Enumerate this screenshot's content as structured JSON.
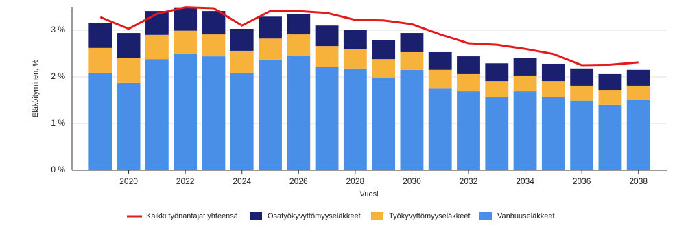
{
  "chart_data": {
    "type": "bar",
    "stacked": true,
    "x_label": "Vuosi",
    "y_label": "Eläköityminen, %",
    "x": [
      2019,
      2020,
      2021,
      2022,
      2023,
      2024,
      2025,
      2026,
      2027,
      2028,
      2029,
      2030,
      2031,
      2032,
      2033,
      2034,
      2035,
      2036,
      2037,
      2038
    ],
    "xlim": [
      2018,
      2039
    ],
    "xticks": [
      2020,
      2022,
      2024,
      2026,
      2028,
      2030,
      2032,
      2034,
      2036,
      2038
    ],
    "ylim": [
      0,
      3.5
    ],
    "yticks": [
      {
        "value": 0,
        "label": "0 %"
      },
      {
        "value": 1,
        "label": "1 %"
      },
      {
        "value": 2,
        "label": "2 %"
      },
      {
        "value": 3,
        "label": "3 %"
      }
    ],
    "grid": true,
    "legend": "bottom",
    "series": [
      {
        "name": "Kaikki työnantajat yhteensä",
        "type": "line",
        "color": "#e31a1c",
        "values": [
          3.28,
          3.03,
          3.35,
          3.49,
          3.47,
          3.1,
          3.41,
          3.41,
          3.37,
          3.22,
          3.21,
          3.13,
          2.91,
          2.72,
          2.69,
          2.6,
          2.49,
          2.25,
          2.26,
          2.31
        ]
      },
      {
        "name": "Osatyökyvyttömyyseläkkeet",
        "type": "bar",
        "color": "#1a1f6e",
        "values": [
          0.54,
          0.54,
          0.51,
          0.5,
          0.5,
          0.47,
          0.47,
          0.44,
          0.44,
          0.41,
          0.41,
          0.41,
          0.38,
          0.38,
          0.38,
          0.37,
          0.37,
          0.37,
          0.34,
          0.34
        ]
      },
      {
        "name": "Työkyvyttömyyseläkkeet",
        "type": "bar",
        "color": "#f7b23b",
        "values": [
          0.53,
          0.53,
          0.52,
          0.5,
          0.47,
          0.47,
          0.45,
          0.45,
          0.44,
          0.42,
          0.39,
          0.38,
          0.39,
          0.37,
          0.35,
          0.34,
          0.34,
          0.32,
          0.32,
          0.31
        ]
      },
      {
        "name": "Vanhuuseläkkeet",
        "type": "bar",
        "color": "#4a8fe7",
        "values": [
          2.09,
          1.87,
          2.38,
          2.49,
          2.44,
          2.09,
          2.37,
          2.46,
          2.22,
          2.18,
          1.99,
          2.15,
          1.76,
          1.69,
          1.56,
          1.69,
          1.57,
          1.49,
          1.4,
          1.5
        ]
      }
    ]
  }
}
